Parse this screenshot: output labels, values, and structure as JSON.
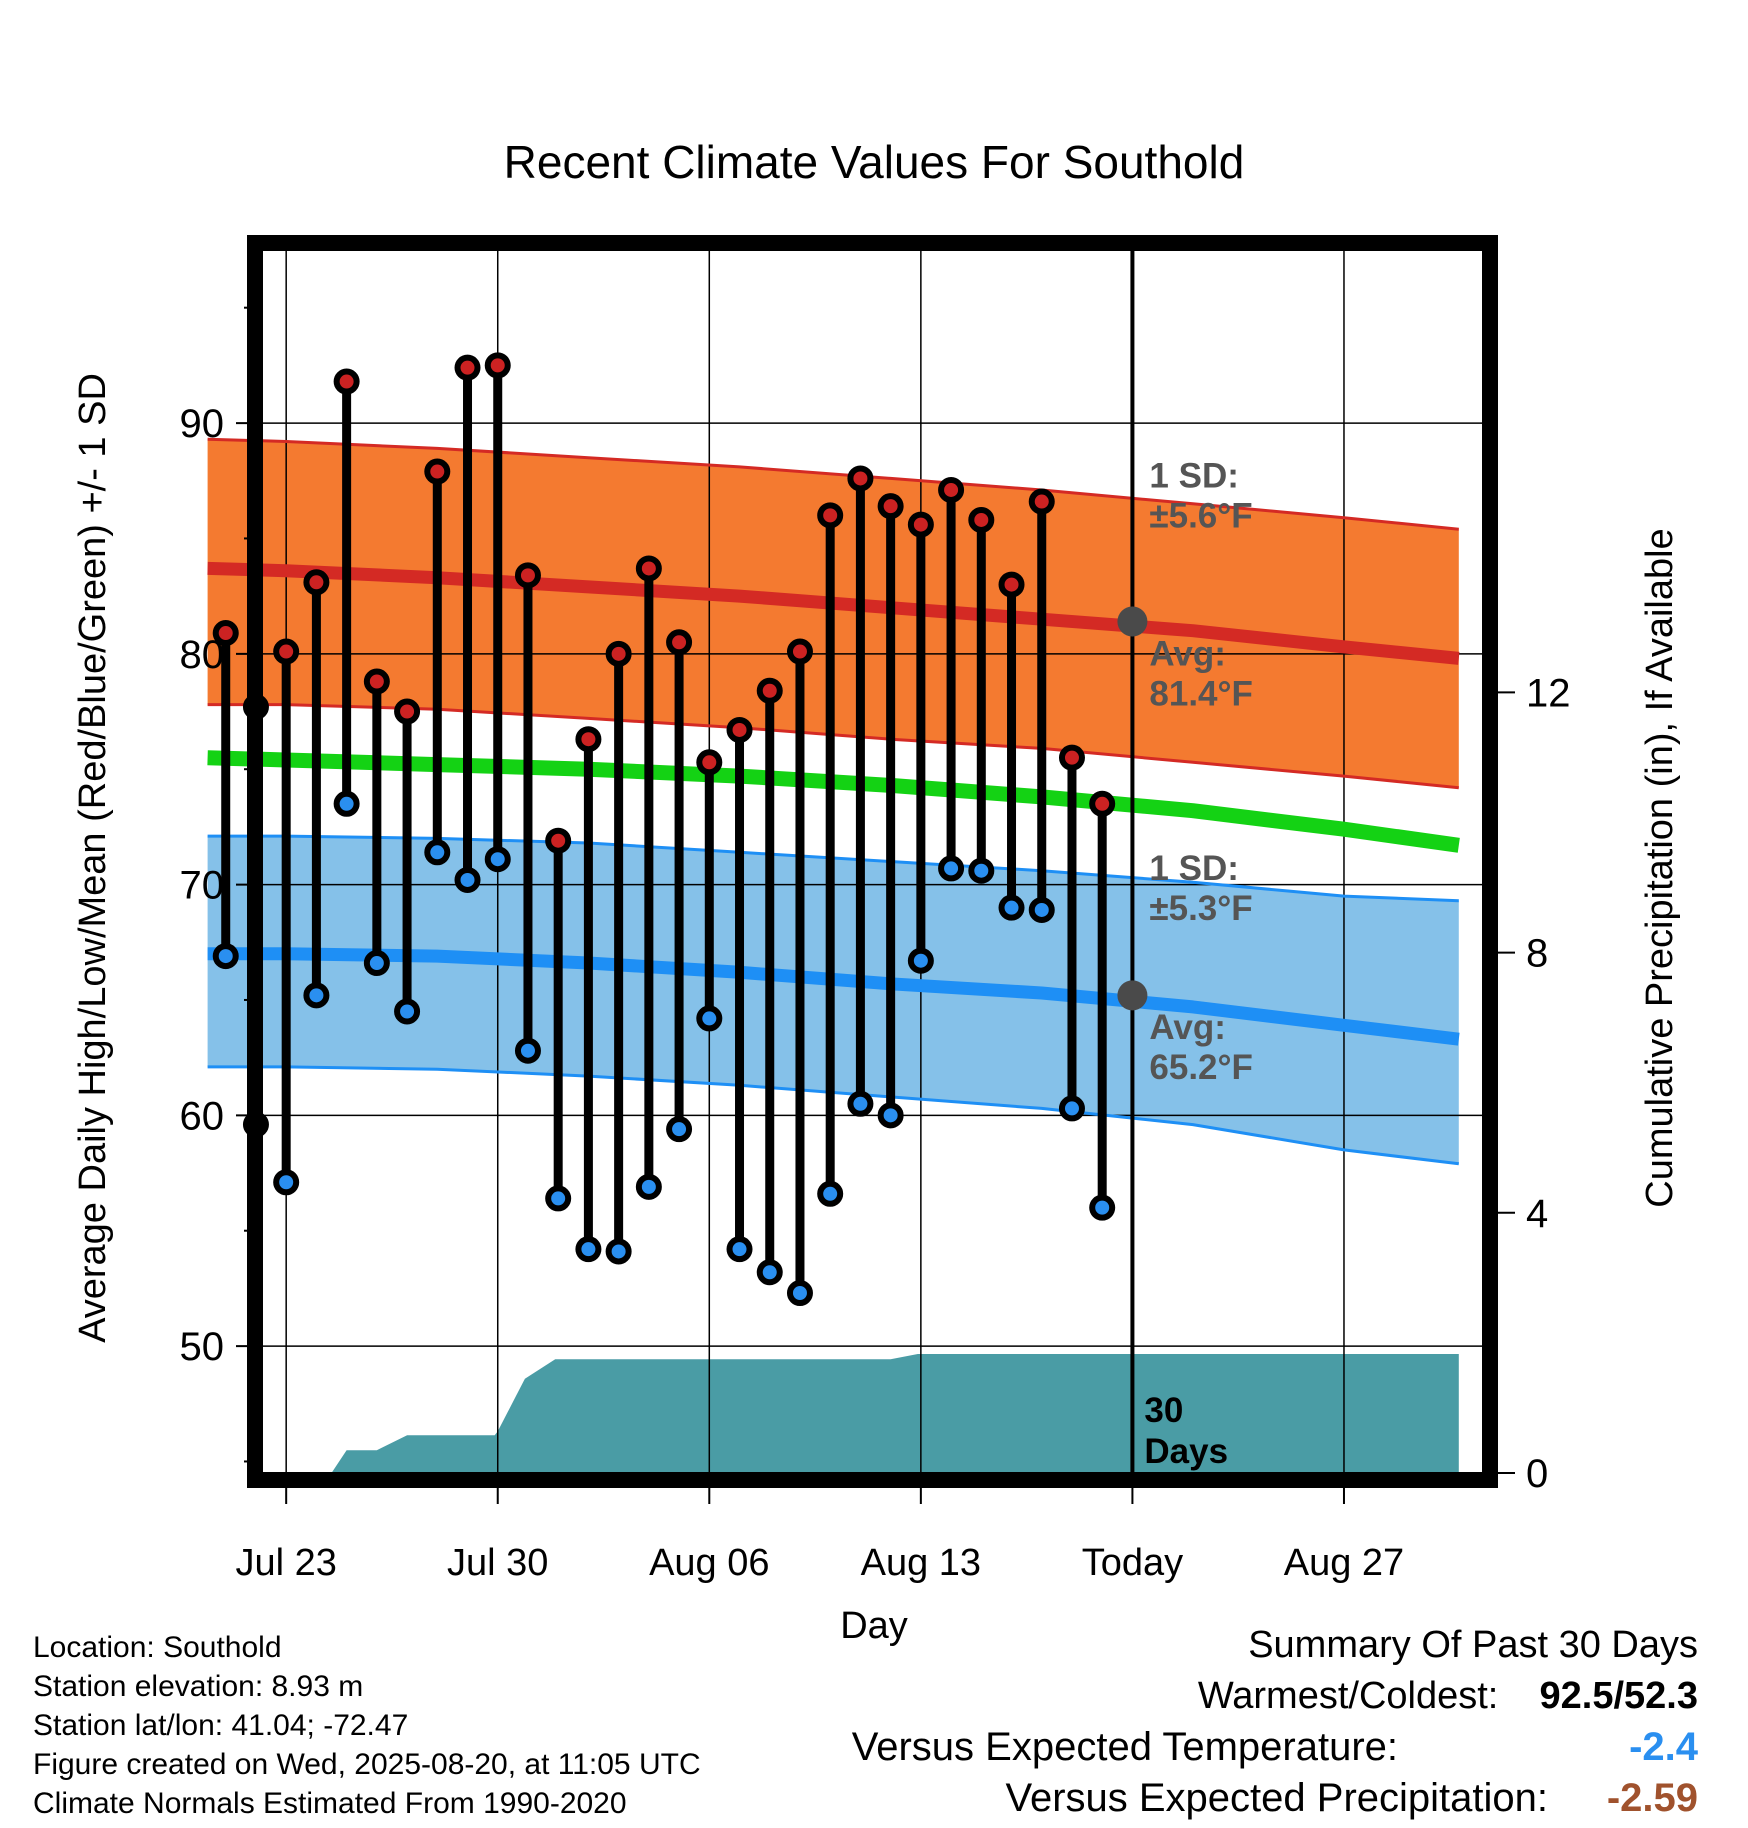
{
  "chart_data": {
    "type": "line",
    "title": "Recent Climate Values For Southold",
    "xlabel": "Day",
    "ylabel": "Average Daily High/Low/Mean (Red/Blue/Green) +/- 1 SD",
    "ylabel_right": "Cumulative Precipitation (in), If Available",
    "ylim": [
      44.5,
      97.5
    ],
    "y2lim": [
      0,
      18.8
    ],
    "xlim": [
      -0.8,
      39.6
    ],
    "yticks": [
      "50",
      "60",
      "70",
      "80",
      "90"
    ],
    "y2ticks": [
      "0",
      "4",
      "8",
      "12"
    ],
    "xticks": [
      {
        "label": "Jul 23",
        "day": 0
      },
      {
        "label": "Jul 30",
        "day": 7
      },
      {
        "label": "Aug 06",
        "day": 14
      },
      {
        "label": "Aug 13",
        "day": 21
      },
      {
        "label": "Today",
        "day": 28
      },
      {
        "label": "Aug 27",
        "day": 35
      }
    ],
    "grid": true,
    "today_day": 28,
    "today_label_lines": [
      "30",
      "Days"
    ],
    "normals": {
      "days": [
        -2.6,
        0,
        5,
        10,
        15,
        20,
        25,
        30,
        35,
        38.8
      ],
      "high_mean": [
        83.7,
        83.6,
        83.3,
        82.9,
        82.5,
        82.0,
        81.5,
        81.0,
        80.3,
        79.8
      ],
      "high_upper": [
        89.3,
        89.2,
        88.9,
        88.5,
        88.1,
        87.6,
        87.1,
        86.5,
        85.9,
        85.4
      ],
      "high_lower": [
        77.8,
        77.8,
        77.6,
        77.2,
        76.8,
        76.3,
        75.9,
        75.3,
        74.7,
        74.2
      ],
      "mean": [
        75.5,
        75.4,
        75.2,
        75.0,
        74.7,
        74.3,
        73.8,
        73.2,
        72.4,
        71.7
      ],
      "low_mean": [
        67.0,
        67.0,
        66.9,
        66.6,
        66.2,
        65.7,
        65.3,
        64.7,
        63.9,
        63.3
      ],
      "low_upper": [
        72.1,
        72.1,
        72.0,
        71.8,
        71.4,
        71.0,
        70.6,
        70.1,
        69.5,
        69.3
      ],
      "low_lower": [
        62.1,
        62.1,
        62.0,
        61.7,
        61.3,
        60.8,
        60.3,
        59.6,
        58.5,
        57.9
      ]
    },
    "annotations": {
      "high_sd": {
        "line1": "1 SD:",
        "line2": "±5.6°F"
      },
      "high_avg": {
        "line1": "Avg:",
        "line2": "81.4°F",
        "value": 81.4
      },
      "low_sd": {
        "line1": "1 SD:",
        "line2": "±5.3°F"
      },
      "low_avg": {
        "line1": "Avg:",
        "line2": "65.2°F",
        "value": 65.2
      }
    },
    "daily": [
      {
        "day": -2,
        "high": 80.9,
        "low": 66.9
      },
      {
        "day": -1,
        "high": 77.7,
        "low": 59.6
      },
      {
        "day": 0,
        "high": 80.1,
        "low": 57.1
      },
      {
        "day": 1,
        "high": 83.1,
        "low": 65.2
      },
      {
        "day": 2,
        "high": 91.8,
        "low": 73.5
      },
      {
        "day": 3,
        "high": 78.8,
        "low": 66.6
      },
      {
        "day": 4,
        "high": 77.5,
        "low": 64.5
      },
      {
        "day": 5,
        "high": 87.9,
        "low": 71.4
      },
      {
        "day": 6,
        "high": 92.4,
        "low": 70.2
      },
      {
        "day": 7,
        "high": 92.5,
        "low": 71.1
      },
      {
        "day": 8,
        "high": 83.4,
        "low": 62.8
      },
      {
        "day": 9,
        "high": 71.9,
        "low": 56.4
      },
      {
        "day": 10,
        "high": 76.3,
        "low": 54.2
      },
      {
        "day": 11,
        "high": 80.0,
        "low": 54.1
      },
      {
        "day": 12,
        "high": 83.7,
        "low": 56.9
      },
      {
        "day": 13,
        "high": 80.5,
        "low": 59.4
      },
      {
        "day": 14,
        "high": 75.3,
        "low": 64.2
      },
      {
        "day": 15,
        "high": 76.7,
        "low": 54.2
      },
      {
        "day": 16,
        "high": 78.4,
        "low": 53.2
      },
      {
        "day": 17,
        "high": 80.1,
        "low": 52.3
      },
      {
        "day": 18,
        "high": 86.0,
        "low": 56.6
      },
      {
        "day": 19,
        "high": 87.6,
        "low": 60.5
      },
      {
        "day": 20,
        "high": 86.4,
        "low": 60.0
      },
      {
        "day": 21,
        "high": 85.6,
        "low": 66.7
      },
      {
        "day": 22,
        "high": 87.1,
        "low": 70.7
      },
      {
        "day": 23,
        "high": 85.8,
        "low": 70.6
      },
      {
        "day": 24,
        "high": 83.0,
        "low": 69.0
      },
      {
        "day": 25,
        "high": 86.6,
        "low": 68.9
      },
      {
        "day": 26,
        "high": 75.5,
        "low": 60.3
      },
      {
        "day": 27,
        "high": 73.5,
        "low": 56.0
      }
    ],
    "precipitation": {
      "days": [
        -2.6,
        0.5,
        1.5,
        2.0,
        3.0,
        4.0,
        6.9,
        7.0,
        7.9,
        8.9,
        20.0,
        20.9,
        27.9,
        38.8
      ],
      "cumulative_in": [
        0,
        0,
        0,
        0.35,
        0.35,
        0.58,
        0.58,
        0.64,
        1.45,
        1.75,
        1.75,
        1.83,
        1.83,
        1.83
      ]
    }
  },
  "footer": {
    "location": "Location: Southold",
    "elevation": "Station elevation: 8.93 m",
    "latlon": "Station lat/lon: 41.04; -72.47",
    "created": "Figure created on Wed, 2025-08-20, at 11:05 UTC",
    "normals": "Climate Normals Estimated From 1990-2020"
  },
  "summary": {
    "title": "Summary Of Past 30 Days",
    "warm_cold_label": "Warmest/Coldest:",
    "warmest": "92.5",
    "separator": "/",
    "coldest": "52.3",
    "temp_label": "Versus Expected Temperature:",
    "temp_value": "-2.4",
    "precip_label": "Versus Expected Precipitation:",
    "precip_value": "-2.59"
  },
  "colors": {
    "high_band": "#f47a30",
    "high_line": "#d42a24",
    "low_band": "#85c1e9",
    "low_line": "#1e8ff5",
    "mean_line": "#14d214",
    "precip_fill": "#4a9ca5",
    "high_dot": "#cc2222",
    "low_dot": "#2a8ff0",
    "annotation_text": "#555555",
    "temp_value": "#2a8ff0",
    "precip_value": "#a0522d"
  }
}
